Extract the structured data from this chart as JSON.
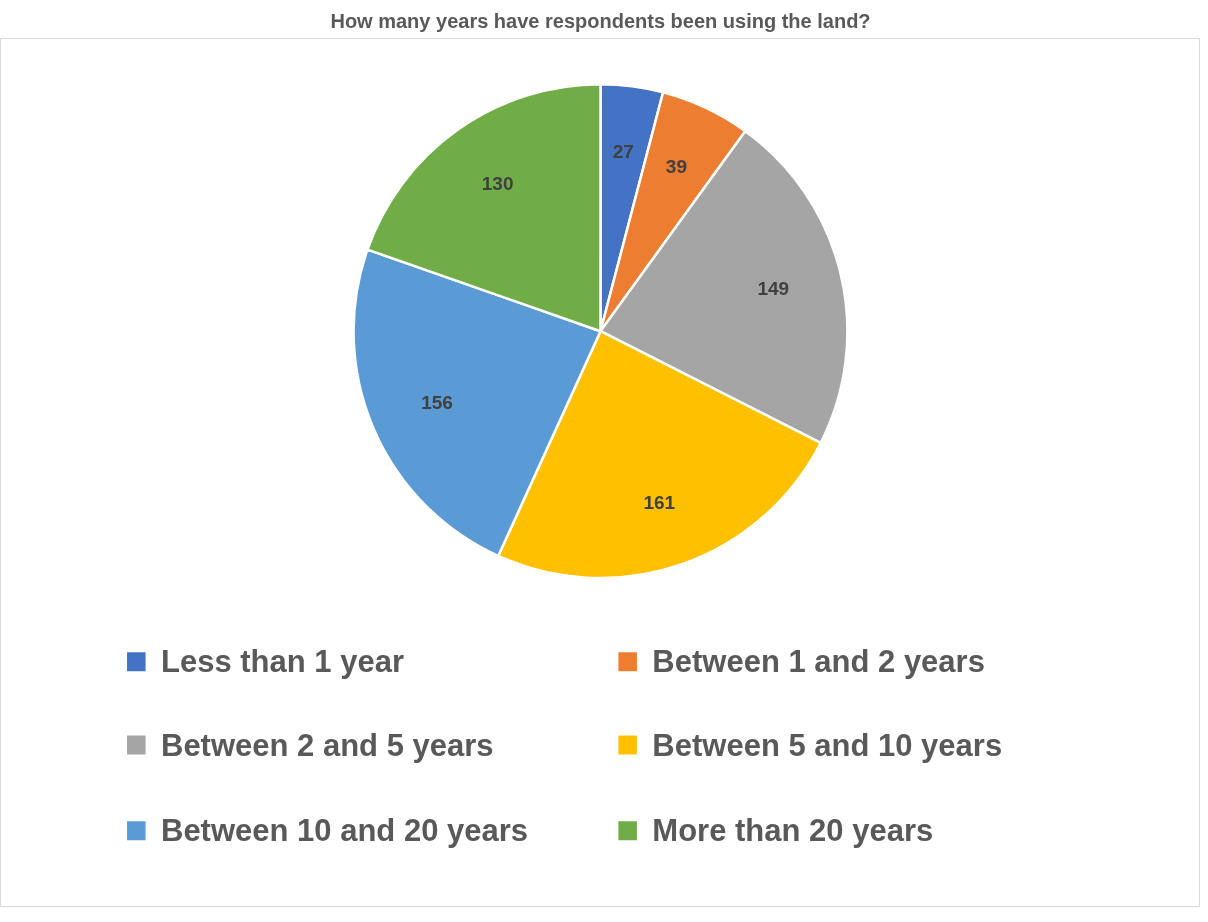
{
  "chart_data": {
    "type": "pie",
    "title": "How many years have respondents been using the land?",
    "categories": [
      "Less than 1 year",
      "Between 1 and 2 years",
      "Between 2 and 5 years",
      "Between 5 and 10 years",
      "Between 10 and 20 years",
      "More than 20 years"
    ],
    "values": [
      27,
      39,
      149,
      161,
      156,
      130
    ],
    "colors": [
      "#4472c4",
      "#ed7d31",
      "#a5a5a5",
      "#ffc000",
      "#5b9bd5",
      "#70ad47"
    ],
    "data_labels": true,
    "legend": "bottom"
  }
}
